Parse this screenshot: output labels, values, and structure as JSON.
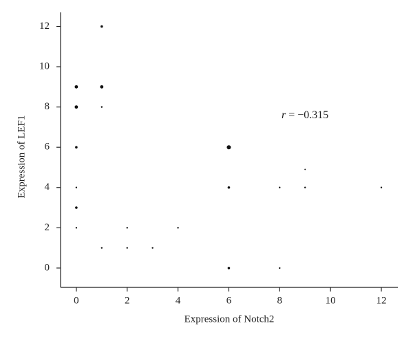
{
  "chart_data": {
    "type": "scatter",
    "x_label": "Expression of Notch2",
    "y_label": "Expression of LEF1",
    "annotation": {
      "symbol": "r",
      "text": "= −0.315"
    },
    "x": [
      0,
      0,
      0,
      0,
      0,
      0,
      1,
      1,
      1,
      1,
      2,
      2,
      3,
      4,
      6,
      6,
      6,
      8,
      8,
      9,
      9,
      12
    ],
    "values": [
      9,
      8,
      6,
      4,
      3,
      2,
      12,
      9,
      8,
      1,
      2,
      1,
      1,
      2,
      6,
      4,
      0,
      4,
      0,
      4.9,
      4,
      4
    ],
    "sizes": [
      3,
      3,
      2,
      1,
      2,
      1,
      2,
      3,
      1,
      1,
      1,
      1,
      1,
      1,
      4,
      2,
      2,
      1,
      1,
      0.6,
      1,
      1
    ],
    "color": "#111111",
    "xlim": [
      -0.62,
      12.65
    ],
    "ylim": [
      -0.96,
      12.7
    ],
    "xticks": [
      0,
      2,
      4,
      6,
      8,
      10,
      12
    ],
    "yticks": [
      0,
      2,
      4,
      6,
      8,
      10,
      12
    ],
    "grid": false
  }
}
